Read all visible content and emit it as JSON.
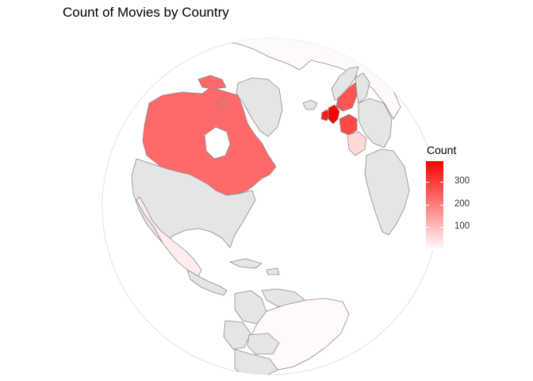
{
  "title": "Count of Movies by Country",
  "legend": {
    "title": "Count",
    "ticks": [
      {
        "label": "300",
        "value": 300
      },
      {
        "label": "200",
        "value": 200
      },
      {
        "label": "100",
        "value": 100
      }
    ],
    "min_value": 1,
    "max_value": 390,
    "low_color": "#ffffff",
    "high_color": "#ff0000"
  },
  "colors": {
    "no_data_fill": "#e5e5e5",
    "border": "#8c8c8c",
    "globe_outline": "#dcdcdc"
  },
  "map_data": {
    "projection": "orthographic",
    "regions": [
      {
        "name": "Canada",
        "value": 230
      },
      {
        "name": "United States",
        "value": null
      },
      {
        "name": "Mexico",
        "value": 30
      },
      {
        "name": "Greenland",
        "value": null
      },
      {
        "name": "Iceland",
        "value": null
      },
      {
        "name": "United Kingdom",
        "value": 390
      },
      {
        "name": "Ireland",
        "value": 350
      },
      {
        "name": "Norway",
        "value": null
      },
      {
        "name": "Sweden",
        "value": 260
      },
      {
        "name": "Finland",
        "value": null
      },
      {
        "name": "France",
        "value": 280
      },
      {
        "name": "Spain",
        "value": 60
      },
      {
        "name": "Russia",
        "value": 8
      },
      {
        "name": "Cuba",
        "value": null
      },
      {
        "name": "Central America",
        "value": null
      },
      {
        "name": "Venezuela",
        "value": null
      },
      {
        "name": "Colombia",
        "value": null
      },
      {
        "name": "Brazil",
        "value": 10
      },
      {
        "name": "Peru",
        "value": null
      },
      {
        "name": "Bolivia",
        "value": null
      }
    ]
  }
}
